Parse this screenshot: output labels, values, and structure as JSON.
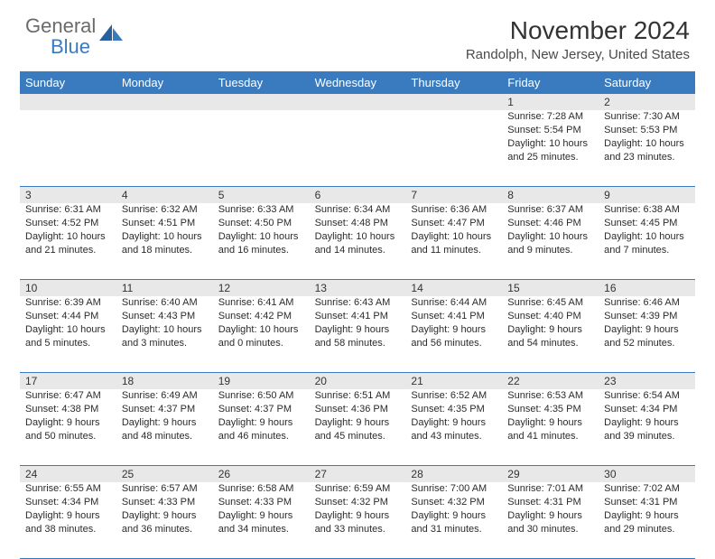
{
  "brand": {
    "part1": "General",
    "part2": "Blue"
  },
  "title": "November 2024",
  "subtitle": "Randolph, New Jersey, United States",
  "colors": {
    "header_bg": "#3a7bbf",
    "daynum_bg": "#e8e8e8",
    "rule": "#3a7bbf",
    "text": "#2b2b2b",
    "logo_gray": "#6b6b6b",
    "logo_blue": "#3a7bbf"
  },
  "dayNames": [
    "Sunday",
    "Monday",
    "Tuesday",
    "Wednesday",
    "Thursday",
    "Friday",
    "Saturday"
  ],
  "weeks": [
    [
      {
        "n": "",
        "lines": []
      },
      {
        "n": "",
        "lines": []
      },
      {
        "n": "",
        "lines": []
      },
      {
        "n": "",
        "lines": []
      },
      {
        "n": "",
        "lines": []
      },
      {
        "n": "1",
        "lines": [
          "Sunrise: 7:28 AM",
          "Sunset: 5:54 PM",
          "Daylight: 10 hours",
          "and 25 minutes."
        ]
      },
      {
        "n": "2",
        "lines": [
          "Sunrise: 7:30 AM",
          "Sunset: 5:53 PM",
          "Daylight: 10 hours",
          "and 23 minutes."
        ]
      }
    ],
    [
      {
        "n": "3",
        "lines": [
          "Sunrise: 6:31 AM",
          "Sunset: 4:52 PM",
          "Daylight: 10 hours",
          "and 21 minutes."
        ]
      },
      {
        "n": "4",
        "lines": [
          "Sunrise: 6:32 AM",
          "Sunset: 4:51 PM",
          "Daylight: 10 hours",
          "and 18 minutes."
        ]
      },
      {
        "n": "5",
        "lines": [
          "Sunrise: 6:33 AM",
          "Sunset: 4:50 PM",
          "Daylight: 10 hours",
          "and 16 minutes."
        ]
      },
      {
        "n": "6",
        "lines": [
          "Sunrise: 6:34 AM",
          "Sunset: 4:48 PM",
          "Daylight: 10 hours",
          "and 14 minutes."
        ]
      },
      {
        "n": "7",
        "lines": [
          "Sunrise: 6:36 AM",
          "Sunset: 4:47 PM",
          "Daylight: 10 hours",
          "and 11 minutes."
        ]
      },
      {
        "n": "8",
        "lines": [
          "Sunrise: 6:37 AM",
          "Sunset: 4:46 PM",
          "Daylight: 10 hours",
          "and 9 minutes."
        ]
      },
      {
        "n": "9",
        "lines": [
          "Sunrise: 6:38 AM",
          "Sunset: 4:45 PM",
          "Daylight: 10 hours",
          "and 7 minutes."
        ]
      }
    ],
    [
      {
        "n": "10",
        "lines": [
          "Sunrise: 6:39 AM",
          "Sunset: 4:44 PM",
          "Daylight: 10 hours",
          "and 5 minutes."
        ]
      },
      {
        "n": "11",
        "lines": [
          "Sunrise: 6:40 AM",
          "Sunset: 4:43 PM",
          "Daylight: 10 hours",
          "and 3 minutes."
        ]
      },
      {
        "n": "12",
        "lines": [
          "Sunrise: 6:41 AM",
          "Sunset: 4:42 PM",
          "Daylight: 10 hours",
          "and 0 minutes."
        ]
      },
      {
        "n": "13",
        "lines": [
          "Sunrise: 6:43 AM",
          "Sunset: 4:41 PM",
          "Daylight: 9 hours",
          "and 58 minutes."
        ]
      },
      {
        "n": "14",
        "lines": [
          "Sunrise: 6:44 AM",
          "Sunset: 4:41 PM",
          "Daylight: 9 hours",
          "and 56 minutes."
        ]
      },
      {
        "n": "15",
        "lines": [
          "Sunrise: 6:45 AM",
          "Sunset: 4:40 PM",
          "Daylight: 9 hours",
          "and 54 minutes."
        ]
      },
      {
        "n": "16",
        "lines": [
          "Sunrise: 6:46 AM",
          "Sunset: 4:39 PM",
          "Daylight: 9 hours",
          "and 52 minutes."
        ]
      }
    ],
    [
      {
        "n": "17",
        "lines": [
          "Sunrise: 6:47 AM",
          "Sunset: 4:38 PM",
          "Daylight: 9 hours",
          "and 50 minutes."
        ]
      },
      {
        "n": "18",
        "lines": [
          "Sunrise: 6:49 AM",
          "Sunset: 4:37 PM",
          "Daylight: 9 hours",
          "and 48 minutes."
        ]
      },
      {
        "n": "19",
        "lines": [
          "Sunrise: 6:50 AM",
          "Sunset: 4:37 PM",
          "Daylight: 9 hours",
          "and 46 minutes."
        ]
      },
      {
        "n": "20",
        "lines": [
          "Sunrise: 6:51 AM",
          "Sunset: 4:36 PM",
          "Daylight: 9 hours",
          "and 45 minutes."
        ]
      },
      {
        "n": "21",
        "lines": [
          "Sunrise: 6:52 AM",
          "Sunset: 4:35 PM",
          "Daylight: 9 hours",
          "and 43 minutes."
        ]
      },
      {
        "n": "22",
        "lines": [
          "Sunrise: 6:53 AM",
          "Sunset: 4:35 PM",
          "Daylight: 9 hours",
          "and 41 minutes."
        ]
      },
      {
        "n": "23",
        "lines": [
          "Sunrise: 6:54 AM",
          "Sunset: 4:34 PM",
          "Daylight: 9 hours",
          "and 39 minutes."
        ]
      }
    ],
    [
      {
        "n": "24",
        "lines": [
          "Sunrise: 6:55 AM",
          "Sunset: 4:34 PM",
          "Daylight: 9 hours",
          "and 38 minutes."
        ]
      },
      {
        "n": "25",
        "lines": [
          "Sunrise: 6:57 AM",
          "Sunset: 4:33 PM",
          "Daylight: 9 hours",
          "and 36 minutes."
        ]
      },
      {
        "n": "26",
        "lines": [
          "Sunrise: 6:58 AM",
          "Sunset: 4:33 PM",
          "Daylight: 9 hours",
          "and 34 minutes."
        ]
      },
      {
        "n": "27",
        "lines": [
          "Sunrise: 6:59 AM",
          "Sunset: 4:32 PM",
          "Daylight: 9 hours",
          "and 33 minutes."
        ]
      },
      {
        "n": "28",
        "lines": [
          "Sunrise: 7:00 AM",
          "Sunset: 4:32 PM",
          "Daylight: 9 hours",
          "and 31 minutes."
        ]
      },
      {
        "n": "29",
        "lines": [
          "Sunrise: 7:01 AM",
          "Sunset: 4:31 PM",
          "Daylight: 9 hours",
          "and 30 minutes."
        ]
      },
      {
        "n": "30",
        "lines": [
          "Sunrise: 7:02 AM",
          "Sunset: 4:31 PM",
          "Daylight: 9 hours",
          "and 29 minutes."
        ]
      }
    ]
  ]
}
